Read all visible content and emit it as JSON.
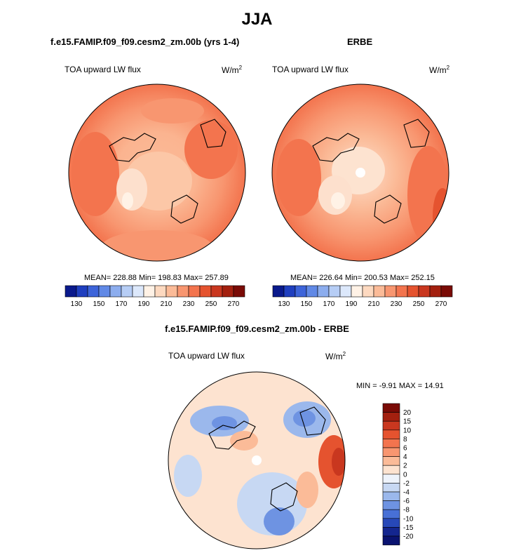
{
  "figure": {
    "title": "JJA",
    "panel1_title": "f.e15.FAMIP.f09_f09.cesm2_zm.00b (yrs 1-4)",
    "panel2_title": "ERBE",
    "panel3_title": "f.e15.FAMIP.f09_f09.cesm2_zm.00b - ERBE"
  },
  "chart_data": [
    {
      "type": "heatmap",
      "projection": "north polar stereographic",
      "title": "f.e15.FAMIP.f09_f09.cesm2_zm.00b (yrs 1-4)",
      "variable": "TOA upward LW flux",
      "units_base": "W/m",
      "units_exp": "2",
      "stats": {
        "mean_label": "MEAN=",
        "mean": "228.88",
        "min_label": "Min=",
        "min": "198.83",
        "max_label": "Max=",
        "max": "257.89"
      },
      "colorbar": {
        "orientation": "horizontal",
        "tick_labels": [
          "130",
          "150",
          "170",
          "190",
          "210",
          "230",
          "250",
          "270"
        ],
        "colors": [
          "#0a1a8c",
          "#1f3fbf",
          "#3d64d9",
          "#6189e6",
          "#8cadee",
          "#b6cdf5",
          "#dce8fb",
          "#fff2e6",
          "#fdd9c0",
          "#fbbb98",
          "#f89670",
          "#f3744e",
          "#e5532f",
          "#c9371f",
          "#a3200f",
          "#7a0b06"
        ]
      }
    },
    {
      "type": "heatmap",
      "projection": "north polar stereographic",
      "title": "ERBE",
      "variable": "TOA upward LW flux",
      "units_base": "W/m",
      "units_exp": "2",
      "stats": {
        "mean_label": "MEAN=",
        "mean": "226.64",
        "min_label": "Min=",
        "min": "200.53",
        "max_label": "Max=",
        "max": "252.15"
      },
      "colorbar": {
        "orientation": "horizontal",
        "tick_labels": [
          "130",
          "150",
          "170",
          "190",
          "210",
          "230",
          "250",
          "270"
        ],
        "colors": [
          "#0a1a8c",
          "#1f3fbf",
          "#3d64d9",
          "#6189e6",
          "#8cadee",
          "#b6cdf5",
          "#dce8fb",
          "#fff2e6",
          "#fdd9c0",
          "#fbbb98",
          "#f89670",
          "#f3744e",
          "#e5532f",
          "#c9371f",
          "#a3200f",
          "#7a0b06"
        ]
      }
    },
    {
      "type": "heatmap",
      "projection": "north polar stereographic",
      "title": "f.e15.FAMIP.f09_f09.cesm2_zm.00b - ERBE",
      "variable": "TOA upward LW flux",
      "units_base": "W/m",
      "units_exp": "2",
      "stats": {
        "text": "MIN = -9.91 MAX = 14.91"
      },
      "colorbar": {
        "orientation": "vertical",
        "tick_labels": [
          "20",
          "15",
          "10",
          "8",
          "6",
          "4",
          "2",
          "0",
          "-2",
          "-4",
          "-6",
          "-8",
          "-10",
          "-15",
          "-20"
        ],
        "colors": [
          "#7a0b06",
          "#a3200f",
          "#c9371f",
          "#e5532f",
          "#f3744e",
          "#f89670",
          "#fbbb98",
          "#fde3d0",
          "#eef3fb",
          "#c7d8f3",
          "#9bb8ec",
          "#6e93e2",
          "#4870d6",
          "#2748b8",
          "#14268f",
          "#0a1370"
        ]
      }
    }
  ]
}
